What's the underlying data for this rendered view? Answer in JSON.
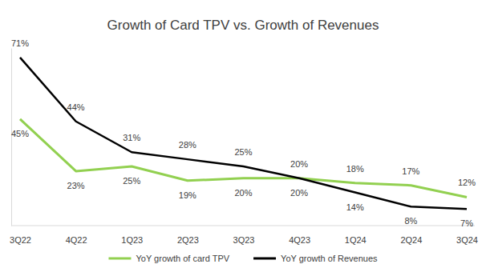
{
  "chart_data": {
    "type": "line",
    "title": "Growth of Card TPV vs. Growth of Revenues",
    "categories": [
      "3Q22",
      "4Q22",
      "1Q23",
      "2Q23",
      "3Q23",
      "4Q23",
      "1Q24",
      "2Q24",
      "3Q24"
    ],
    "series": [
      {
        "name": "YoY growth of card TPV",
        "color": "#92d050",
        "values": [
          45,
          23,
          25,
          19,
          20,
          20,
          18,
          17,
          12
        ],
        "value_labels": [
          "45%",
          "23%",
          "25%",
          "19%",
          "20%",
          "20%",
          "18%",
          "17%",
          "12%"
        ]
      },
      {
        "name": "YoY growth of Revenues",
        "color": "#000000",
        "values": [
          71,
          44,
          31,
          28,
          25,
          20,
          14,
          8,
          7
        ],
        "value_labels": [
          "71%",
          "44%",
          "31%",
          "28%",
          "25%",
          "20%",
          "14%",
          "8%",
          "7%"
        ]
      }
    ],
    "ylim": [
      0,
      75
    ],
    "yticks": [],
    "tick_labels": "x",
    "data_labels": true,
    "legend": "bottom",
    "grid": false
  }
}
